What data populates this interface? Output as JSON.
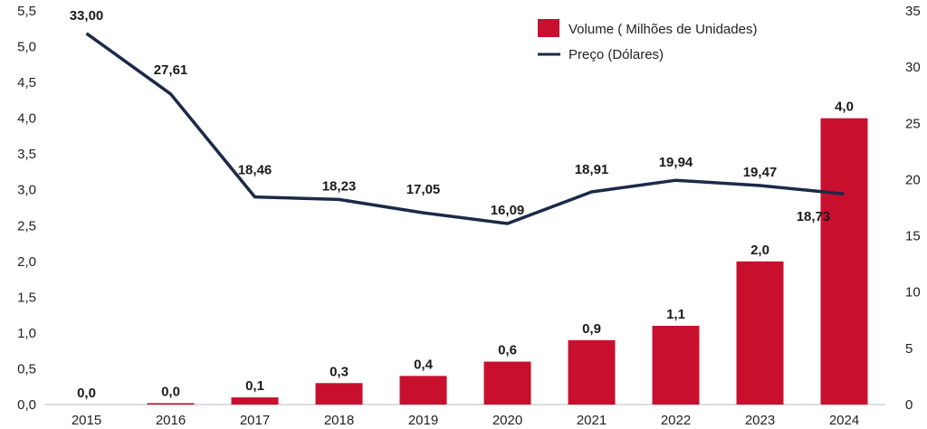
{
  "chart_data": {
    "type": "bar+line",
    "categories": [
      "2015",
      "2016",
      "2017",
      "2018",
      "2019",
      "2020",
      "2021",
      "2022",
      "2023",
      "2024"
    ],
    "series": [
      {
        "name": "Volume ( Milhões de Unidades)",
        "type": "bar",
        "axis": "left",
        "color": "#c8102e",
        "values": [
          0.0,
          0.02,
          0.1,
          0.3,
          0.4,
          0.6,
          0.9,
          1.1,
          2.0,
          4.0
        ],
        "labels": [
          "0,0",
          "0,0",
          "0,1",
          "0,3",
          "0,4",
          "0,6",
          "0,9",
          "1,1",
          "2,0",
          "4,0"
        ]
      },
      {
        "name": "Preço (Dólares)",
        "type": "line",
        "axis": "right",
        "color": "#1b2a47",
        "values": [
          33.0,
          27.61,
          18.46,
          18.23,
          17.05,
          16.09,
          18.91,
          19.94,
          19.47,
          18.73
        ],
        "labels": [
          "33,00",
          "27,61",
          "18,46",
          "18,23",
          "17,05",
          "16,09",
          "18,91",
          "19,94",
          "19,47",
          "18,73"
        ]
      }
    ],
    "y_left": {
      "min": 0,
      "max": 5.5,
      "ticks": [
        0,
        0.5,
        1,
        1.5,
        2,
        2.5,
        3,
        3.5,
        4,
        4.5,
        5,
        5.5
      ],
      "tick_labels": [
        "0,0",
        "0,5",
        "1,0",
        "1,5",
        "2,0",
        "2,5",
        "3,0",
        "3,5",
        "4,0",
        "4,5",
        "5,0",
        "5,5"
      ]
    },
    "y_right": {
      "min": 0,
      "max": 35,
      "ticks": [
        0,
        5,
        10,
        15,
        20,
        25,
        30,
        35
      ],
      "tick_labels": [
        "0",
        "5",
        "10",
        "15",
        "20",
        "25",
        "30",
        "35"
      ]
    },
    "legend_position": "top-right",
    "grid": false
  }
}
